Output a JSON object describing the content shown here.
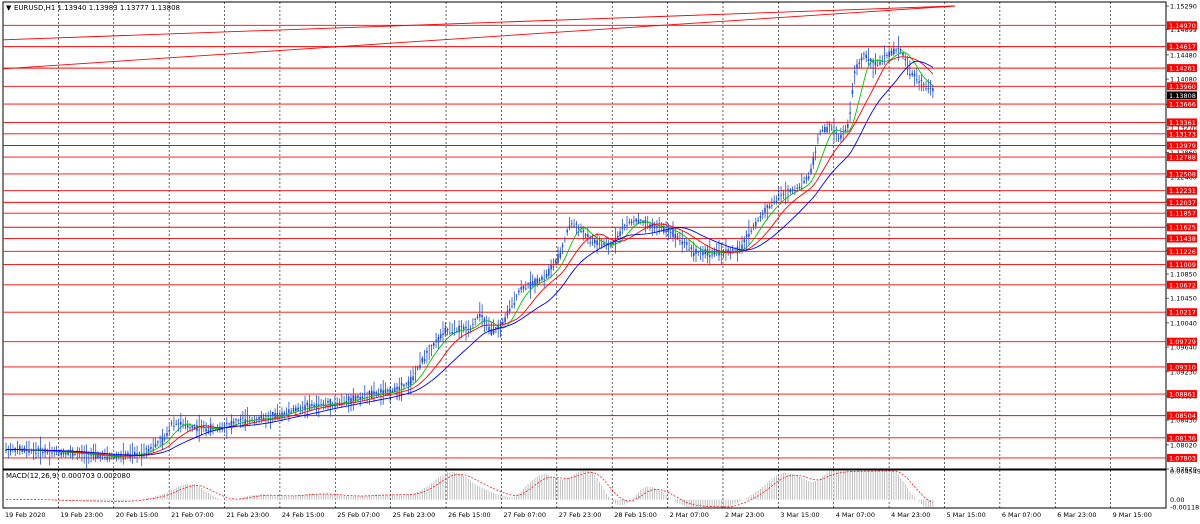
{
  "main_chart": {
    "symbol_line": "EURUSD,H1  1.13940 1.13983 1.13777 1.13808",
    "price_scale": [
      "1.15290",
      "1.14899",
      "1.14480",
      "1.14080",
      "1.13660",
      "1.13270",
      "1.12860",
      "1.12460",
      "1.12050",
      "1.11650",
      "1.11240",
      "1.10850",
      "1.10450",
      "1.10040",
      "1.09640",
      "1.09230",
      "1.08830",
      "1.08430",
      "1.08020",
      "1.07620"
    ],
    "price_range": [
      1.0762,
      1.1529
    ],
    "current_price": "1.13808",
    "horizontal_levels": [
      "1.14970",
      "1.14617",
      "1.14261",
      "1.13960",
      "1.13666",
      "1.13361",
      "1.13173",
      "1.12979",
      "1.12788",
      "1.12508",
      "1.12231",
      "1.12037",
      "1.11857",
      "1.11625",
      "1.11438",
      "1.11226",
      "1.11009",
      "1.10672",
      "1.10217",
      "1.09729",
      "1.09310",
      "1.08861",
      "1.08504",
      "1.08136",
      "1.07803"
    ],
    "trendlines": [
      {
        "from_price": 1.1473,
        "to_price": 1.1529
      },
      {
        "from_price": 1.1425,
        "to_price": 1.1529
      }
    ],
    "colors": {
      "level_line": "#ff0000",
      "level_label_bg": "#ff0000",
      "candle": "#1f4fd6",
      "ma_fast": "#00c000",
      "ma_mid": "#ff0000",
      "ma_slow": "#0000ff",
      "current_bg": "#000000",
      "grid": "#000000"
    }
  },
  "time_axis": [
    "19 Feb 2020",
    "19 Feb 23:00",
    "20 Feb 15:00",
    "21 Feb 07:00",
    "21 Feb 23:00",
    "24 Feb 15:00",
    "25 Feb 07:00",
    "25 Feb 23:00",
    "26 Feb 15:00",
    "27 Feb 07:00",
    "27 Feb 23:00",
    "28 Feb 15:00",
    "2 Mar 07:00",
    "2 Mar 23:00",
    "3 Mar 15:00",
    "4 Mar 07:00",
    "4 Mar 23:00",
    "5 Mar 15:00",
    "6 Mar 07:00",
    "6 Mar 23:00",
    "9 Mar 15:00"
  ],
  "macd": {
    "label": "MACD(12,26,9)  0.000703 0.002080",
    "scale": [
      "0.004549",
      "0.00",
      "-0.001183"
    ],
    "range": [
      -0.001183,
      0.004549
    ],
    "colors": {
      "histogram": "#b0b0b0",
      "signal": "#ff0000"
    }
  },
  "price_path": [
    [
      0,
      1.0795
    ],
    [
      40,
      1.0792
    ],
    [
      75,
      1.0788
    ],
    [
      110,
      1.0782
    ],
    [
      140,
      1.0787
    ],
    [
      165,
      1.0812
    ],
    [
      172,
      1.084
    ],
    [
      190,
      1.0832
    ],
    [
      215,
      1.0828
    ],
    [
      240,
      1.0842
    ],
    [
      270,
      1.0847
    ],
    [
      305,
      1.0865
    ],
    [
      340,
      1.0872
    ],
    [
      370,
      1.0885
    ],
    [
      390,
      1.089
    ],
    [
      410,
      1.0905
    ],
    [
      425,
      1.095
    ],
    [
      445,
      1.099
    ],
    [
      470,
      1.0995
    ],
    [
      480,
      1.102
    ],
    [
      490,
      1.099
    ],
    [
      500,
      1.0995
    ],
    [
      520,
      1.106
    ],
    [
      545,
      1.108
    ],
    [
      560,
      1.1115
    ],
    [
      570,
      1.117
    ],
    [
      580,
      1.116
    ],
    [
      590,
      1.114
    ],
    [
      610,
      1.113
    ],
    [
      625,
      1.1165
    ],
    [
      635,
      1.1175
    ],
    [
      650,
      1.1165
    ],
    [
      665,
      1.116
    ],
    [
      680,
      1.1145
    ],
    [
      695,
      1.112
    ],
    [
      715,
      1.112
    ],
    [
      740,
      1.1125
    ],
    [
      750,
      1.1155
    ],
    [
      765,
      1.119
    ],
    [
      780,
      1.1215
    ],
    [
      800,
      1.123
    ],
    [
      810,
      1.125
    ],
    [
      820,
      1.132
    ],
    [
      830,
      1.133
    ],
    [
      840,
      1.131
    ],
    [
      848,
      1.133
    ],
    [
      855,
      1.142
    ],
    [
      865,
      1.145
    ],
    [
      875,
      1.143
    ],
    [
      890,
      1.145
    ],
    [
      900,
      1.146
    ],
    [
      910,
      1.142
    ],
    [
      922,
      1.14
    ],
    [
      935,
      1.1385
    ]
  ]
}
